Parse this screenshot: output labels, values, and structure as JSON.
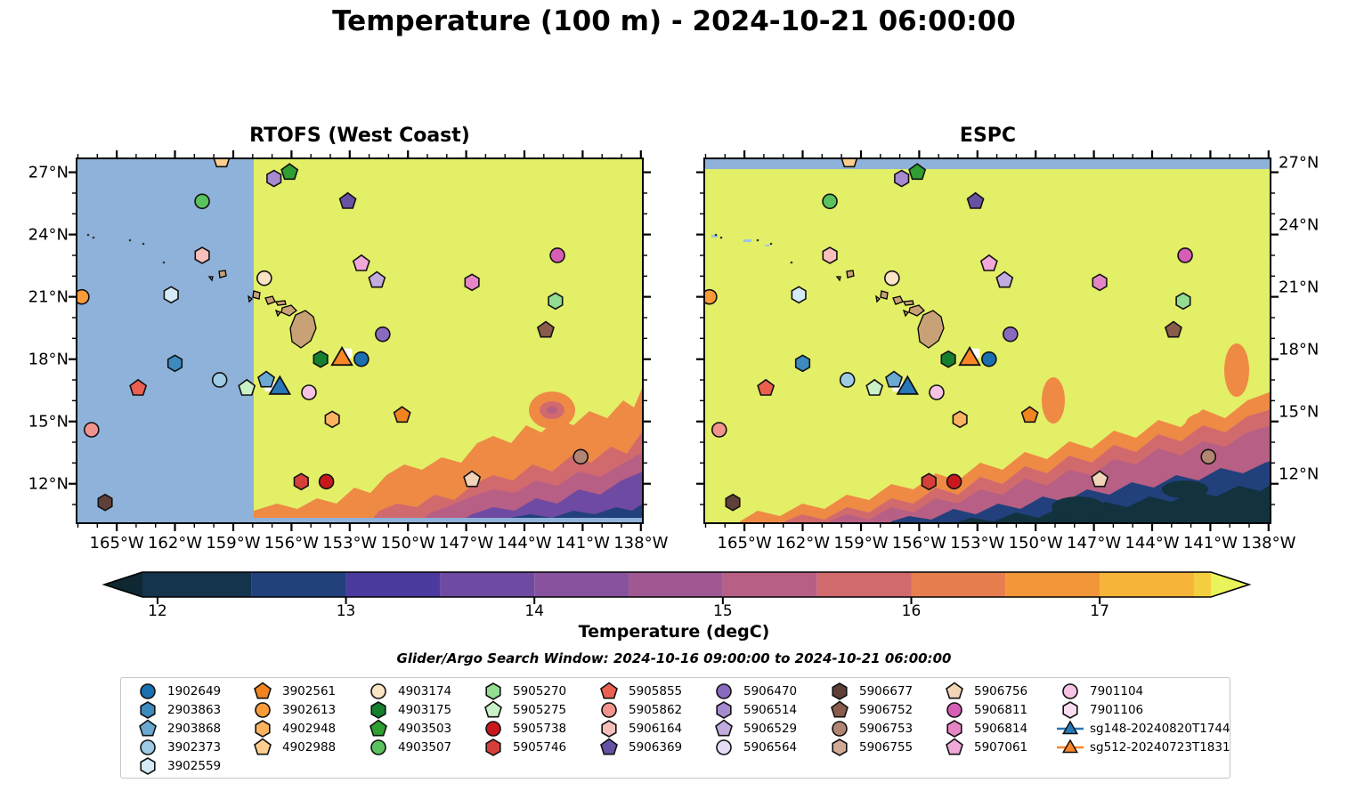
{
  "title": "Temperature (100 m) - 2024-10-21 06:00:00",
  "panels": [
    {
      "id": "rtofs",
      "title": "RTOFS (West Coast)"
    },
    {
      "id": "espc",
      "title": "ESPC"
    }
  ],
  "axes": {
    "lon_tick_labels": [
      "165°W",
      "162°W",
      "159°W",
      "156°W",
      "153°W",
      "150°W",
      "147°W",
      "144°W",
      "141°W",
      "138°W"
    ],
    "lon_tick_values_degW": [
      165,
      162,
      159,
      156,
      153,
      150,
      147,
      144,
      141,
      138
    ],
    "lat_tick_labels": [
      "27°N",
      "24°N",
      "21°N",
      "18°N",
      "15°N",
      "12°N"
    ],
    "lat_tick_values_degN": [
      27,
      24,
      21,
      18,
      15,
      12
    ],
    "lon_range_degW": [
      167.07,
      137.9
    ],
    "lat_range_degN": [
      10.1,
      27.67
    ]
  },
  "colorbar": {
    "label": "Temperature (degC)",
    "tick_labels": [
      "12",
      "13",
      "14",
      "15",
      "16",
      "17"
    ],
    "tick_values": [
      12,
      13,
      14,
      15,
      16,
      17
    ],
    "range": [
      11.92,
      17.59
    ],
    "segment_boundaries": [
      11.92,
      12.5,
      13.0,
      13.5,
      14.0,
      14.5,
      15.0,
      15.5,
      16.0,
      16.5,
      17.0,
      17.5,
      17.59
    ],
    "segment_colors": [
      "#14334d",
      "#21407c",
      "#4c3b9e",
      "#6f4aa2",
      "#87539e",
      "#9f5892",
      "#b75f84",
      "#d16a6d",
      "#e77e50",
      "#f2963a",
      "#f6b438",
      "#f3cf40"
    ],
    "arrow_left_color": "#0f2733",
    "arrow_right_color": "#e9f45c"
  },
  "search_window": "Glider/Argo Search Window: 2024-10-16 09:00:00 to 2024-10-21 06:00:00",
  "map_colors": {
    "nodata_blue": "#8fb2da",
    "warm_yellow": "#e3ef67",
    "land_tan": "#c9a176",
    "front_orange": "#ef8a45",
    "front_salmon": "#d16a6d",
    "front_mauve": "#b75f84",
    "front_purple": "#6f4aa2",
    "front_navy": "#21407c",
    "front_darkteal": "#12323e",
    "shallow_blue": "#9fc3e6",
    "outline": "#000000"
  },
  "field_notes": {
    "rtofs_nodata_west_of_degW": 158.0,
    "espc_nodata_north_of_degN": 27.4,
    "warm_region_degC": 17.5,
    "cold_front": "southeast corner 12-16 degC; ESPC colder (dark teal) than RTOFS (purple)"
  },
  "chart_data": {
    "type": "scatter",
    "title": "Temperature (100 m) - 2024-10-21 06:00:00",
    "subplots": [
      "RTOFS (West Coast)",
      "ESPC"
    ],
    "xlim_degW": [
      167.07,
      137.9
    ],
    "ylim_degN": [
      10.1,
      27.67
    ],
    "colorbar_label": "Temperature (degC)",
    "colorbar_ticks": [
      12,
      13,
      14,
      15,
      16,
      17
    ],
    "points": [
      {
        "id": "1902649",
        "shape": "circle",
        "color": "#1a6faf",
        "lonW": 152.4,
        "latN": 18.0
      },
      {
        "id": "2903863",
        "shape": "hexagon",
        "color": "#3c8abe",
        "lonW": 162.0,
        "latN": 17.8
      },
      {
        "id": "2903868",
        "shape": "pentagon",
        "color": "#6aaad2",
        "lonW": 157.3,
        "latN": 17.0
      },
      {
        "id": "3902373",
        "shape": "circle",
        "color": "#9dcbe4",
        "lonW": 159.7,
        "latN": 17.0
      },
      {
        "id": "3902559",
        "shape": "hexagon",
        "color": "#d4eaf6",
        "lonW": 162.2,
        "latN": 21.1
      },
      {
        "id": "3902561",
        "shape": "pentagon",
        "color": "#f1841f",
        "lonW": 150.3,
        "latN": 15.3
      },
      {
        "id": "3902613",
        "shape": "circle",
        "color": "#f99b38",
        "lonW": 166.8,
        "latN": 21.0
      },
      {
        "id": "4902948",
        "shape": "hexagon",
        "color": "#fbb360",
        "lonW": 153.9,
        "latN": 15.1
      },
      {
        "id": "4902988",
        "shape": "pentagon",
        "color": "#fdcf8e",
        "lonW": 159.6,
        "latN": 27.6
      },
      {
        "id": "4903174",
        "shape": "circle",
        "color": "#fbe3c5",
        "lonW": 157.4,
        "latN": 21.9
      },
      {
        "id": "4903175",
        "shape": "hexagon",
        "color": "#157f2e",
        "lonW": 154.5,
        "latN": 18.0
      },
      {
        "id": "4903503",
        "shape": "pentagon",
        "color": "#2f9e33",
        "lonW": 156.1,
        "latN": 27.0
      },
      {
        "id": "4903507",
        "shape": "circle",
        "color": "#5ac25e",
        "lonW": 160.6,
        "latN": 25.6
      },
      {
        "id": "5905270",
        "shape": "hexagon",
        "color": "#92dd92",
        "lonW": 142.4,
        "latN": 20.8
      },
      {
        "id": "5905275",
        "shape": "pentagon",
        "color": "#caf2c6",
        "lonW": 158.3,
        "latN": 16.6
      },
      {
        "id": "5905738",
        "shape": "circle",
        "color": "#c9181d",
        "lonW": 154.2,
        "latN": 12.1
      },
      {
        "id": "5905746",
        "shape": "hexagon",
        "color": "#d7403a",
        "lonW": 155.5,
        "latN": 12.1
      },
      {
        "id": "5905855",
        "shape": "pentagon",
        "color": "#ec6050",
        "lonW": 163.9,
        "latN": 16.6
      },
      {
        "id": "5905862",
        "shape": "circle",
        "color": "#f2938e",
        "lonW": 166.3,
        "latN": 14.6
      },
      {
        "id": "5906164",
        "shape": "hexagon",
        "color": "#f9bfba",
        "lonW": 160.6,
        "latN": 23.0
      },
      {
        "id": "5906369",
        "shape": "pentagon",
        "color": "#6751a3",
        "lonW": 153.1,
        "latN": 25.6
      },
      {
        "id": "5906470",
        "shape": "circle",
        "color": "#8a6abf",
        "lonW": 151.3,
        "latN": 19.2
      },
      {
        "id": "5906514",
        "shape": "hexagon",
        "color": "#a68bd0",
        "lonW": 156.9,
        "latN": 26.7
      },
      {
        "id": "5906529",
        "shape": "pentagon",
        "color": "#c2abdf",
        "lonW": 151.6,
        "latN": 21.8
      },
      {
        "id": "5906677",
        "shape": "hexagon",
        "color": "#5f4038",
        "lonW": 165.6,
        "latN": 11.1
      },
      {
        "id": "5906752",
        "shape": "pentagon",
        "color": "#8a5c4b",
        "lonW": 142.9,
        "latN": 19.4
      },
      {
        "id": "5906753",
        "shape": "circle",
        "color": "#b28672",
        "lonW": 141.1,
        "latN": 13.3
      },
      {
        "id": "5906756",
        "shape": "pentagon",
        "color": "#f2d4b8",
        "lonW": 146.7,
        "latN": 12.2
      },
      {
        "id": "5906811",
        "shape": "circle",
        "color": "#d75eb6",
        "lonW": 142.3,
        "latN": 23.0
      },
      {
        "id": "5906814",
        "shape": "hexagon",
        "color": "#e685c5",
        "lonW": 146.7,
        "latN": 21.7
      },
      {
        "id": "5907061",
        "shape": "pentagon",
        "color": "#f0a8d8",
        "lonW": 152.4,
        "latN": 22.6
      },
      {
        "id": "7901104",
        "shape": "circle",
        "color": "#f6c3e4",
        "lonW": 155.1,
        "latN": 16.4
      },
      {
        "id": "sg148-20240820T1744",
        "shape": "triangle",
        "color": "#2878b8",
        "lonW": 156.6,
        "latN": 16.6
      },
      {
        "id": "sg512-20240723T1831",
        "shape": "triangle",
        "color": "#fb8627",
        "lonW": 153.4,
        "latN": 18.0
      }
    ],
    "white_patches": [
      {
        "lonW": 157.1,
        "latN": 16.7
      },
      {
        "lonW": 153.2,
        "latN": 18.3
      }
    ],
    "legend_only_ids_not_visible_on_map": [
      "5906564",
      "5906755",
      "7901106"
    ]
  },
  "legend": {
    "rows_per_column": [
      5,
      4,
      4,
      4,
      4,
      4,
      4,
      4,
      4
    ],
    "entries": [
      {
        "label": "1902649",
        "shape": "circle",
        "color": "#1a6faf"
      },
      {
        "label": "2903863",
        "shape": "hexagon",
        "color": "#3c8abe"
      },
      {
        "label": "2903868",
        "shape": "pentagon",
        "color": "#6aaad2"
      },
      {
        "label": "3902373",
        "shape": "circle",
        "color": "#9dcbe4"
      },
      {
        "label": "3902559",
        "shape": "hexagon",
        "color": "#d4eaf6"
      },
      {
        "label": "3902561",
        "shape": "pentagon",
        "color": "#f1841f"
      },
      {
        "label": "3902613",
        "shape": "circle",
        "color": "#f99b38"
      },
      {
        "label": "4902948",
        "shape": "hexagon",
        "color": "#fbb360"
      },
      {
        "label": "4902988",
        "shape": "pentagon",
        "color": "#fdcf8e"
      },
      {
        "label": "4903174",
        "shape": "circle",
        "color": "#fbe3c5"
      },
      {
        "label": "4903175",
        "shape": "hexagon",
        "color": "#157f2e"
      },
      {
        "label": "4903503",
        "shape": "pentagon",
        "color": "#2f9e33"
      },
      {
        "label": "4903507",
        "shape": "circle",
        "color": "#5ac25e"
      },
      {
        "label": "5905270",
        "shape": "hexagon",
        "color": "#92dd92"
      },
      {
        "label": "5905275",
        "shape": "pentagon",
        "color": "#caf2c6"
      },
      {
        "label": "5905738",
        "shape": "circle",
        "color": "#c9181d"
      },
      {
        "label": "5905746",
        "shape": "hexagon",
        "color": "#d7403a"
      },
      {
        "label": "5905855",
        "shape": "pentagon",
        "color": "#ec6050"
      },
      {
        "label": "5905862",
        "shape": "circle",
        "color": "#f2938e"
      },
      {
        "label": "5906164",
        "shape": "hexagon",
        "color": "#f9bfba"
      },
      {
        "label": "5906369",
        "shape": "pentagon",
        "color": "#6751a3"
      },
      {
        "label": "5906470",
        "shape": "circle",
        "color": "#8a6abf"
      },
      {
        "label": "5906514",
        "shape": "hexagon",
        "color": "#a68bd0"
      },
      {
        "label": "5906529",
        "shape": "pentagon",
        "color": "#c2abdf"
      },
      {
        "label": "5906564",
        "shape": "circle",
        "color": "#e6dcf4"
      },
      {
        "label": "5906677",
        "shape": "hexagon",
        "color": "#5f4038"
      },
      {
        "label": "5906752",
        "shape": "pentagon",
        "color": "#8a5c4b"
      },
      {
        "label": "5906753",
        "shape": "circle",
        "color": "#b28672"
      },
      {
        "label": "5906755",
        "shape": "hexagon",
        "color": "#d2ab97"
      },
      {
        "label": "5906756",
        "shape": "pentagon",
        "color": "#f2d4b8"
      },
      {
        "label": "5906811",
        "shape": "circle",
        "color": "#d75eb6"
      },
      {
        "label": "5906814",
        "shape": "hexagon",
        "color": "#e685c5"
      },
      {
        "label": "5907061",
        "shape": "pentagon",
        "color": "#f0a8d8"
      },
      {
        "label": "7901104",
        "shape": "circle",
        "color": "#f6c3e4"
      },
      {
        "label": "7901106",
        "shape": "hexagon",
        "color": "#fbddf1"
      },
      {
        "label": "sg148-20240820T1744",
        "shape": "glider",
        "color": "#2878b8"
      },
      {
        "label": "sg512-20240723T1831",
        "shape": "glider",
        "color": "#fb8627"
      }
    ]
  }
}
